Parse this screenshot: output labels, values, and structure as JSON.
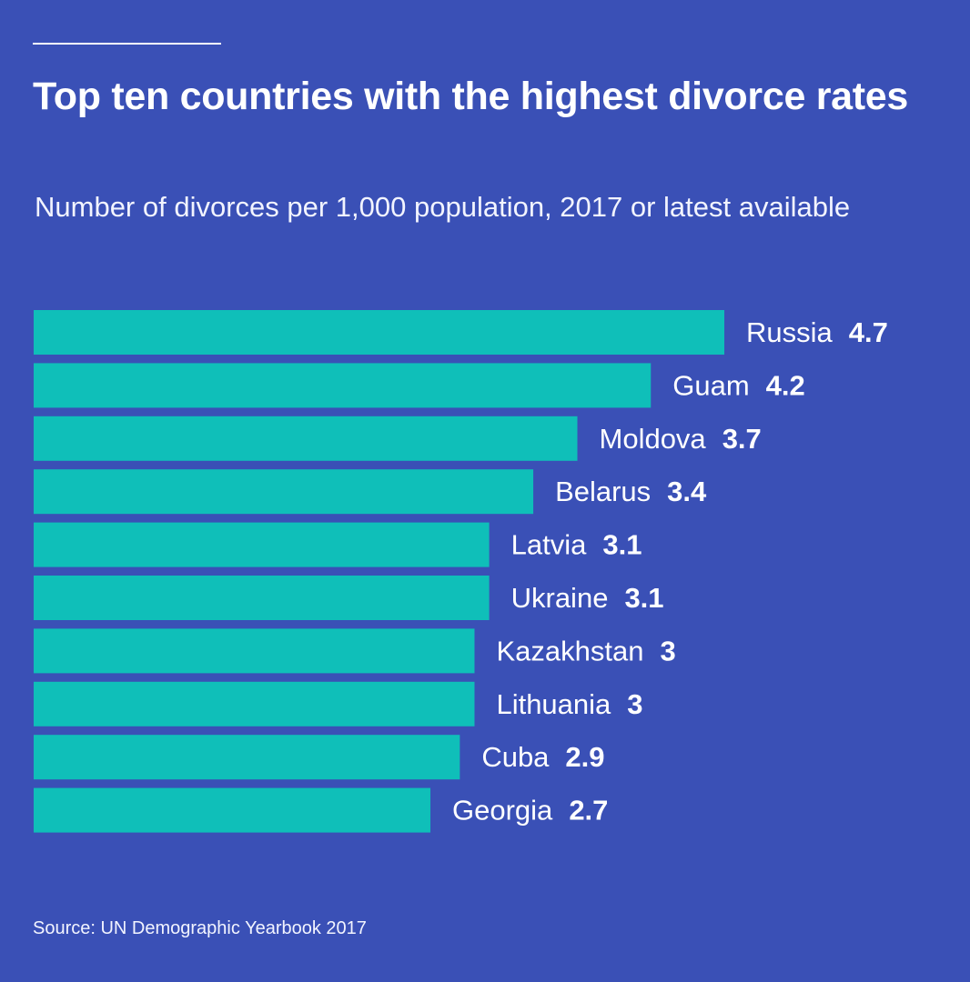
{
  "header": {
    "title": "Top ten countries with the highest divorce rates",
    "subtitle": "Number of divorces per 1,000 population, 2017 or latest available"
  },
  "footer": {
    "source": "Source: UN Demographic Yearbook 2017"
  },
  "colors": {
    "background": "#3a50b6",
    "bar": "#0fbfb9",
    "text": "#ffffff"
  },
  "chart_data": {
    "type": "bar",
    "orientation": "horizontal",
    "title": "Top ten countries with the highest divorce rates",
    "subtitle": "Number of divorces per 1,000 population, 2017 or latest available",
    "xlabel": "",
    "ylabel": "",
    "categories": [
      "Russia",
      "Guam",
      "Moldova",
      "Belarus",
      "Latvia",
      "Ukraine",
      "Kazakhstan",
      "Lithuania",
      "Cuba",
      "Georgia"
    ],
    "values": [
      4.7,
      4.2,
      3.7,
      3.4,
      3.1,
      3.1,
      3,
      3,
      2.9,
      2.7
    ],
    "value_labels": [
      "4.7",
      "4.2",
      "3.7",
      "3.4",
      "3.1",
      "3.1",
      "3",
      "3",
      "2.9",
      "2.7"
    ],
    "xlim": [
      0,
      4.7
    ],
    "grid": false,
    "legend": "none"
  }
}
